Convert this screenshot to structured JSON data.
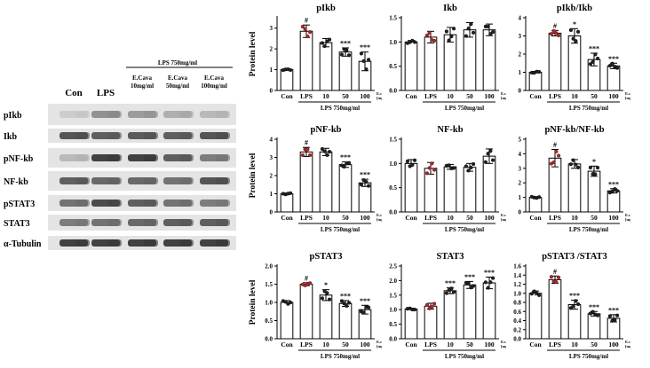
{
  "blot": {
    "treatment_header": "LPS 750mg/ml",
    "lanes": [
      "Con",
      "LPS",
      "E.Cava\n10mg/ml",
      "E.Cava\n50mg/ml",
      "E.Cava\n100mg/ml"
    ],
    "bands": [
      "pIkb",
      "Ikb",
      "pNF-kb",
      "NF-kb",
      "pSTAT3",
      "STAT3",
      "α-Tubulin"
    ]
  },
  "chart_data": [
    {
      "type": "bar",
      "title": "pIkb",
      "ylabel": "Protein level",
      "ylim": [
        0,
        3.5
      ],
      "yticks": [
        0,
        1,
        2,
        3
      ],
      "categories": [
        "Con",
        "LPS",
        "10",
        "50",
        "100"
      ],
      "values": [
        1.0,
        2.85,
        2.3,
        1.85,
        1.4
      ],
      "errors": [
        0.03,
        0.3,
        0.2,
        0.2,
        0.45
      ],
      "significance": [
        "",
        "#",
        "",
        "***",
        "***"
      ],
      "unit_label": "E.cava [mg/ml]",
      "group_label": "LPS 750mg/ml"
    },
    {
      "type": "bar",
      "title": "Ikb",
      "ylabel": "",
      "ylim": [
        0,
        1.5
      ],
      "yticks": [
        0.0,
        0.5,
        1.0,
        1.5
      ],
      "categories": [
        "Con",
        "LPS",
        "10",
        "50",
        "100"
      ],
      "values": [
        1.0,
        1.1,
        1.15,
        1.25,
        1.25
      ],
      "errors": [
        0.03,
        0.12,
        0.15,
        0.15,
        0.12
      ],
      "significance": [
        "",
        "",
        "",
        "",
        ""
      ],
      "unit_label": "E.cava [mg/ml]",
      "group_label": "LPS 750mg/ml"
    },
    {
      "type": "bar",
      "title": "pIkb/Ikb",
      "ylabel": "",
      "ylim": [
        0,
        4
      ],
      "yticks": [
        0,
        1,
        2,
        3,
        4
      ],
      "categories": [
        "Con",
        "LPS",
        "10",
        "50",
        "100"
      ],
      "values": [
        1.0,
        3.15,
        3.0,
        1.7,
        1.35
      ],
      "errors": [
        0.05,
        0.15,
        0.4,
        0.35,
        0.15
      ],
      "significance": [
        "",
        "#",
        "*",
        "***",
        "***"
      ],
      "unit_label": "E.cava [mg/ml]",
      "group_label": "LPS 750mg/ml"
    },
    {
      "type": "bar",
      "title": "pNF-kb",
      "ylabel": "Protein level",
      "ylim": [
        0,
        4
      ],
      "yticks": [
        0,
        1,
        2,
        3,
        4
      ],
      "categories": [
        "Con",
        "LPS",
        "10",
        "50",
        "100"
      ],
      "values": [
        1.0,
        3.3,
        3.3,
        2.6,
        1.6
      ],
      "errors": [
        0.04,
        0.25,
        0.2,
        0.15,
        0.2
      ],
      "significance": [
        "",
        "#",
        "",
        "***",
        "***"
      ],
      "unit_label": "E.cava [mg/ml]",
      "group_label": "LPS 750mg/ml"
    },
    {
      "type": "bar",
      "title": "NF-kb",
      "ylabel": "",
      "ylim": [
        0,
        1.5
      ],
      "yticks": [
        0.0,
        0.5,
        1.0,
        1.5
      ],
      "categories": [
        "Con",
        "LPS",
        "10",
        "50",
        "100"
      ],
      "values": [
        1.0,
        0.9,
        0.93,
        0.92,
        1.15
      ],
      "errors": [
        0.08,
        0.12,
        0.05,
        0.08,
        0.15
      ],
      "significance": [
        "",
        "",
        "",
        "",
        ""
      ],
      "unit_label": "E.cava [mg/ml]",
      "group_label": "LPS 750mg/ml"
    },
    {
      "type": "bar",
      "title": "pNF-kb/NF-kb",
      "ylabel": "",
      "ylim": [
        0,
        5
      ],
      "yticks": [
        0,
        1,
        2,
        3,
        4,
        5
      ],
      "categories": [
        "Con",
        "LPS",
        "10",
        "50",
        "100"
      ],
      "values": [
        1.0,
        3.7,
        3.3,
        2.8,
        1.45
      ],
      "errors": [
        0.05,
        0.6,
        0.3,
        0.35,
        0.15
      ],
      "significance": [
        "",
        "#",
        "",
        "*",
        "***"
      ],
      "unit_label": "E.cava [mg/ml]",
      "group_label": "LPS 750mg/ml"
    },
    {
      "type": "bar",
      "title": "pSTAT3",
      "ylabel": "Protein level",
      "ylim": [
        0,
        2.0
      ],
      "yticks": [
        0.0,
        0.5,
        1.0,
        1.5,
        2.0
      ],
      "categories": [
        "Con",
        "LPS",
        "10",
        "50",
        "100"
      ],
      "values": [
        1.0,
        1.5,
        1.2,
        0.97,
        0.8
      ],
      "errors": [
        0.05,
        0.04,
        0.15,
        0.08,
        0.12
      ],
      "significance": [
        "",
        "#",
        "*",
        "***",
        "***"
      ],
      "unit_label": "E.cava [mg/ml]",
      "group_label": "LPS 750mg/ml"
    },
    {
      "type": "bar",
      "title": "STAT3",
      "ylabel": "",
      "ylim": [
        0,
        2.5
      ],
      "yticks": [
        0.0,
        0.5,
        1.0,
        1.5,
        2.0,
        2.5
      ],
      "categories": [
        "Con",
        "LPS",
        "10",
        "50",
        "100"
      ],
      "values": [
        1.02,
        1.12,
        1.65,
        1.85,
        1.92
      ],
      "errors": [
        0.03,
        0.1,
        0.1,
        0.12,
        0.2
      ],
      "significance": [
        "",
        "",
        "***",
        "***",
        "***"
      ],
      "unit_label": "E.cava [mg/ml]",
      "group_label": "LPS 750mg/ml"
    },
    {
      "type": "bar",
      "title": "pSTAT3 /STAT3",
      "ylabel": "",
      "ylim": [
        0,
        1.6
      ],
      "yticks": [
        0.0,
        0.2,
        0.4,
        0.6,
        0.8,
        1.0,
        1.2,
        1.4,
        1.6
      ],
      "categories": [
        "Con",
        "LPS",
        "10",
        "50",
        "100"
      ],
      "values": [
        1.0,
        1.3,
        0.75,
        0.55,
        0.45
      ],
      "errors": [
        0.05,
        0.08,
        0.1,
        0.05,
        0.08
      ],
      "significance": [
        "",
        "#",
        "***",
        "***",
        "***"
      ],
      "unit_label": "E.cava [mg/ml]",
      "group_label": "LPS 750mg/ml"
    }
  ]
}
